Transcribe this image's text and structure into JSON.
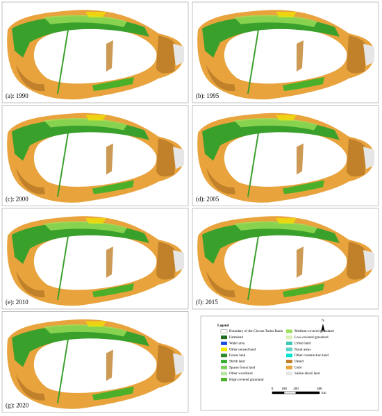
{
  "panels": [
    {
      "label": "(a): 1990"
    },
    {
      "label": "(b): 1995"
    },
    {
      "label": "(c): 2000"
    },
    {
      "label": "(d): 2005"
    },
    {
      "label": "(e): 2010"
    },
    {
      "label": "(f): 2015"
    },
    {
      "label": "(g): 2020"
    }
  ],
  "legend": {
    "title": "Legend",
    "items": [
      {
        "label": "Boundary of the Circum Tarim Basin",
        "color": "#ffffff"
      },
      {
        "label": "Farmland",
        "color": "#1f6b1f"
      },
      {
        "label": "Water area",
        "color": "#1f4fe0"
      },
      {
        "label": "Other unused land",
        "color": "#f2e600"
      },
      {
        "label": "Forest land",
        "color": "#2e8b2e"
      },
      {
        "label": "Shrub land",
        "color": "#38b038"
      },
      {
        "label": "Sparse forest land",
        "color": "#7ccf5a"
      },
      {
        "label": "Other woodland",
        "color": "#b8e6a0"
      },
      {
        "label": "High-covered grassland",
        "color": "#4caf2a"
      },
      {
        "label": "Medium-covered grassland",
        "color": "#9be05a"
      },
      {
        "label": "Low-covered grassland",
        "color": "#d9f0b0"
      },
      {
        "label": "Urban land",
        "color": "#3cc8b4"
      },
      {
        "label": "Rural areas",
        "color": "#5ad2c8"
      },
      {
        "label": "Other construction land",
        "color": "#00e0d0"
      },
      {
        "label": "Desert",
        "color": "#c0812a"
      },
      {
        "label": "Gobi",
        "color": "#e8a33d"
      },
      {
        "label": "Saline-alkali land",
        "color": "#e6e6e6"
      }
    ],
    "north": "N",
    "scale": {
      "ticks": [
        0,
        100,
        200,
        400
      ],
      "unit": "km"
    }
  }
}
